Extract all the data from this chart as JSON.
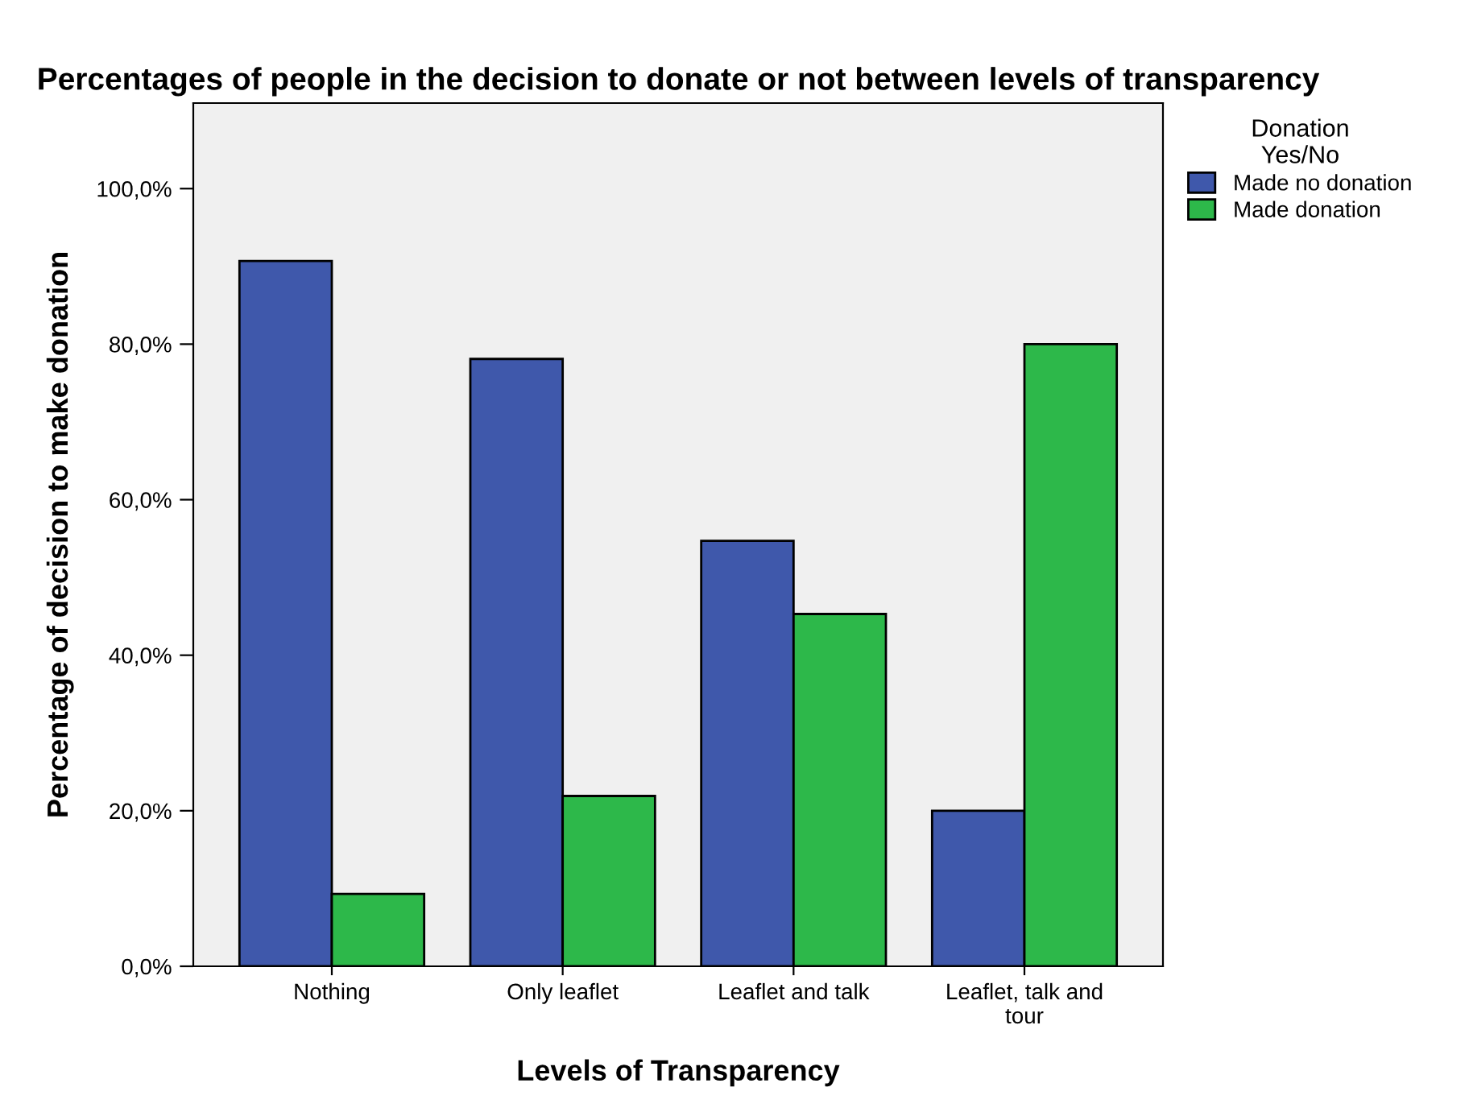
{
  "chart_data": {
    "type": "bar",
    "title": "Percentages of people in the decision to donate or not between levels of transparency",
    "xlabel": "Levels of Transparency",
    "ylabel": "Percentage of decision to make donation",
    "legend_title": "Donation\nYes/No",
    "categories": [
      "Nothing",
      "Only leaflet",
      "Leaflet and talk",
      "Leaflet, talk and tour"
    ],
    "series": [
      {
        "name": "Made no donation",
        "color": "#3f58ab",
        "values": [
          90.7,
          78.1,
          54.7,
          20.0
        ]
      },
      {
        "name": "Made donation",
        "color": "#2db84a",
        "values": [
          9.3,
          21.9,
          45.3,
          80.0
        ]
      }
    ],
    "ylim": [
      0,
      111
    ],
    "yticks": [
      {
        "value": 0,
        "label": "0,0%"
      },
      {
        "value": 20,
        "label": "20,0%"
      },
      {
        "value": 40,
        "label": "40,0%"
      },
      {
        "value": 60,
        "label": "60,0%"
      },
      {
        "value": 80,
        "label": "80,0%"
      },
      {
        "value": 100,
        "label": "100,0%"
      }
    ],
    "grid": false,
    "legend": "right"
  }
}
